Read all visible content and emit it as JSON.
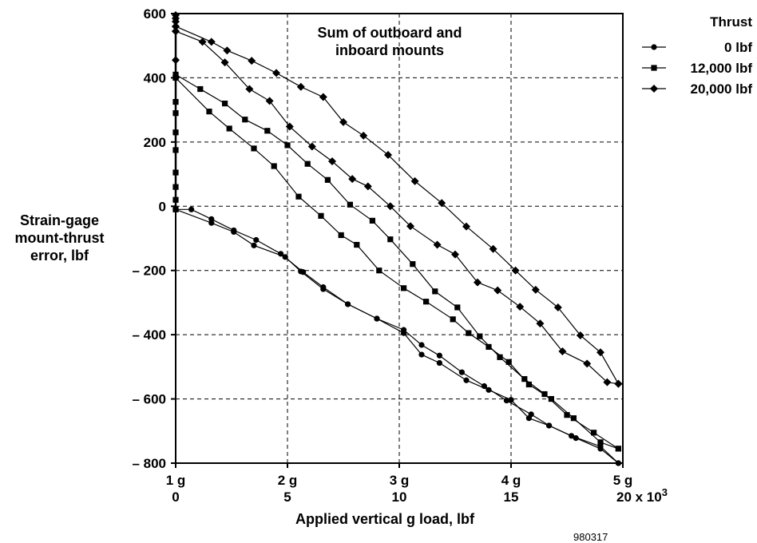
{
  "chart_data": {
    "type": "line",
    "title": "Sum of outboard and\ninboard mounts",
    "xlabel": "Applied vertical g load, lbf",
    "ylabel": "Strain-gage\nmount-thrust\nerror, lbf",
    "figure_id": "980317",
    "xlim": [
      0,
      20000
    ],
    "ylim": [
      -800,
      600
    ],
    "x_ticks": [
      0,
      5000,
      10000,
      15000,
      20000
    ],
    "x_tick_labels": [
      "0",
      "5",
      "10",
      "15",
      "20 x 10"
    ],
    "x_multiplier_exponent": "3",
    "x_secondary_tick_labels": [
      "1 g",
      "2 g",
      "3 g",
      "4 g",
      "5 g"
    ],
    "y_ticks": [
      600,
      400,
      200,
      0,
      -200,
      -400,
      -600,
      -800
    ],
    "y_tick_labels": [
      "600",
      "400",
      "200",
      "0",
      "– 200",
      "– 400",
      "– 600",
      "– 800"
    ],
    "grid": true,
    "legend": {
      "title": "Thrust",
      "placement": "top-right"
    },
    "series": [
      {
        "name": "0 lbf",
        "marker": "circle",
        "points": [
          [
            0,
            -10
          ],
          [
            700,
            -10
          ],
          [
            1600,
            -40
          ],
          [
            2600,
            -75
          ],
          [
            3600,
            -105
          ],
          [
            4700,
            -148
          ],
          [
            5700,
            -205
          ],
          [
            6600,
            -252
          ],
          [
            7700,
            -305
          ],
          [
            9000,
            -350
          ],
          [
            10200,
            -385
          ],
          [
            11000,
            -432
          ],
          [
            11800,
            -465
          ],
          [
            12800,
            -517
          ],
          [
            13800,
            -560
          ],
          [
            14800,
            -605
          ],
          [
            15900,
            -648
          ],
          [
            16700,
            -683
          ],
          [
            17700,
            -715
          ],
          [
            19000,
            -748
          ],
          [
            19800,
            -800
          ]
        ]
      },
      {
        "name": "0 lbf",
        "marker": "circle",
        "points": [
          [
            19800,
            -800
          ],
          [
            19000,
            -755
          ],
          [
            17900,
            -722
          ],
          [
            16700,
            -683
          ],
          [
            15800,
            -660
          ],
          [
            15000,
            -603
          ],
          [
            14000,
            -572
          ],
          [
            13000,
            -542
          ],
          [
            11800,
            -488
          ],
          [
            11000,
            -462
          ],
          [
            10200,
            -395
          ],
          [
            9000,
            -350
          ],
          [
            7700,
            -305
          ],
          [
            6600,
            -258
          ],
          [
            5600,
            -203
          ],
          [
            4900,
            -158
          ],
          [
            3500,
            -122
          ],
          [
            2600,
            -80
          ],
          [
            1600,
            -52
          ],
          [
            0,
            -10
          ]
        ]
      },
      {
        "name": "12,000 lbf",
        "marker": "square",
        "points": [
          [
            0,
            410
          ],
          [
            1100,
            365
          ],
          [
            2200,
            320
          ],
          [
            3100,
            270
          ],
          [
            4100,
            235
          ],
          [
            5000,
            190
          ],
          [
            5900,
            132
          ],
          [
            6800,
            82
          ],
          [
            7800,
            5
          ],
          [
            8800,
            -45
          ],
          [
            9600,
            -103
          ],
          [
            10600,
            -180
          ],
          [
            11600,
            -265
          ],
          [
            12600,
            -315
          ],
          [
            13600,
            -405
          ],
          [
            14500,
            -470
          ],
          [
            15600,
            -538
          ],
          [
            16500,
            -585
          ],
          [
            17500,
            -650
          ],
          [
            18700,
            -705
          ],
          [
            19800,
            -755
          ]
        ]
      },
      {
        "name": "12,000 lbf",
        "marker": "square",
        "points": [
          [
            19800,
            -755
          ],
          [
            19000,
            -735
          ],
          [
            17800,
            -660
          ],
          [
            16800,
            -600
          ],
          [
            15800,
            -555
          ],
          [
            14900,
            -485
          ],
          [
            14000,
            -438
          ],
          [
            13100,
            -395
          ],
          [
            12400,
            -352
          ],
          [
            11200,
            -297
          ],
          [
            10200,
            -255
          ],
          [
            9100,
            -200
          ],
          [
            8100,
            -120
          ],
          [
            7400,
            -90
          ],
          [
            6500,
            -30
          ],
          [
            5500,
            30
          ],
          [
            4400,
            125
          ],
          [
            3500,
            180
          ],
          [
            2400,
            242
          ],
          [
            1500,
            295
          ],
          [
            0,
            400
          ]
        ]
      },
      {
        "name": "20,000 lbf",
        "marker": "diamond",
        "points": [
          [
            0,
            560
          ],
          [
            1600,
            512
          ],
          [
            2300,
            485
          ],
          [
            3400,
            453
          ],
          [
            4500,
            415
          ],
          [
            5600,
            372
          ],
          [
            6600,
            340
          ],
          [
            7500,
            262
          ],
          [
            8400,
            220
          ],
          [
            9500,
            160
          ],
          [
            10700,
            78
          ],
          [
            11900,
            10
          ],
          [
            13000,
            -63
          ],
          [
            14200,
            -133
          ],
          [
            15200,
            -200
          ],
          [
            16100,
            -260
          ],
          [
            17100,
            -315
          ],
          [
            18100,
            -402
          ],
          [
            19000,
            -455
          ],
          [
            19800,
            -553
          ]
        ]
      },
      {
        "name": "20,000 lbf",
        "marker": "diamond",
        "points": [
          [
            19800,
            -553
          ],
          [
            19300,
            -548
          ],
          [
            18400,
            -490
          ],
          [
            17300,
            -452
          ],
          [
            16300,
            -365
          ],
          [
            15400,
            -313
          ],
          [
            14400,
            -262
          ],
          [
            13500,
            -237
          ],
          [
            12500,
            -150
          ],
          [
            11700,
            -120
          ],
          [
            10500,
            -62
          ],
          [
            9600,
            0
          ],
          [
            8600,
            62
          ],
          [
            7900,
            85
          ],
          [
            7000,
            140
          ],
          [
            6100,
            186
          ],
          [
            5100,
            248
          ],
          [
            4200,
            328
          ],
          [
            3300,
            365
          ],
          [
            2200,
            448
          ],
          [
            1200,
            512
          ],
          [
            0,
            545
          ]
        ]
      },
      {
        "name": "",
        "marker": "square",
        "points": [
          [
            0,
            -10
          ],
          [
            0,
            20
          ],
          [
            0,
            60
          ],
          [
            0,
            105
          ],
          [
            0,
            175
          ],
          [
            0,
            230
          ],
          [
            0,
            290
          ],
          [
            0,
            325
          ],
          [
            0,
            400
          ]
        ]
      },
      {
        "name": "",
        "marker": "diamond",
        "points": [
          [
            0,
            400
          ],
          [
            0,
            455
          ],
          [
            0,
            545
          ],
          [
            0,
            560
          ],
          [
            0,
            575
          ],
          [
            0,
            585
          ],
          [
            0,
            595
          ]
        ]
      }
    ]
  }
}
